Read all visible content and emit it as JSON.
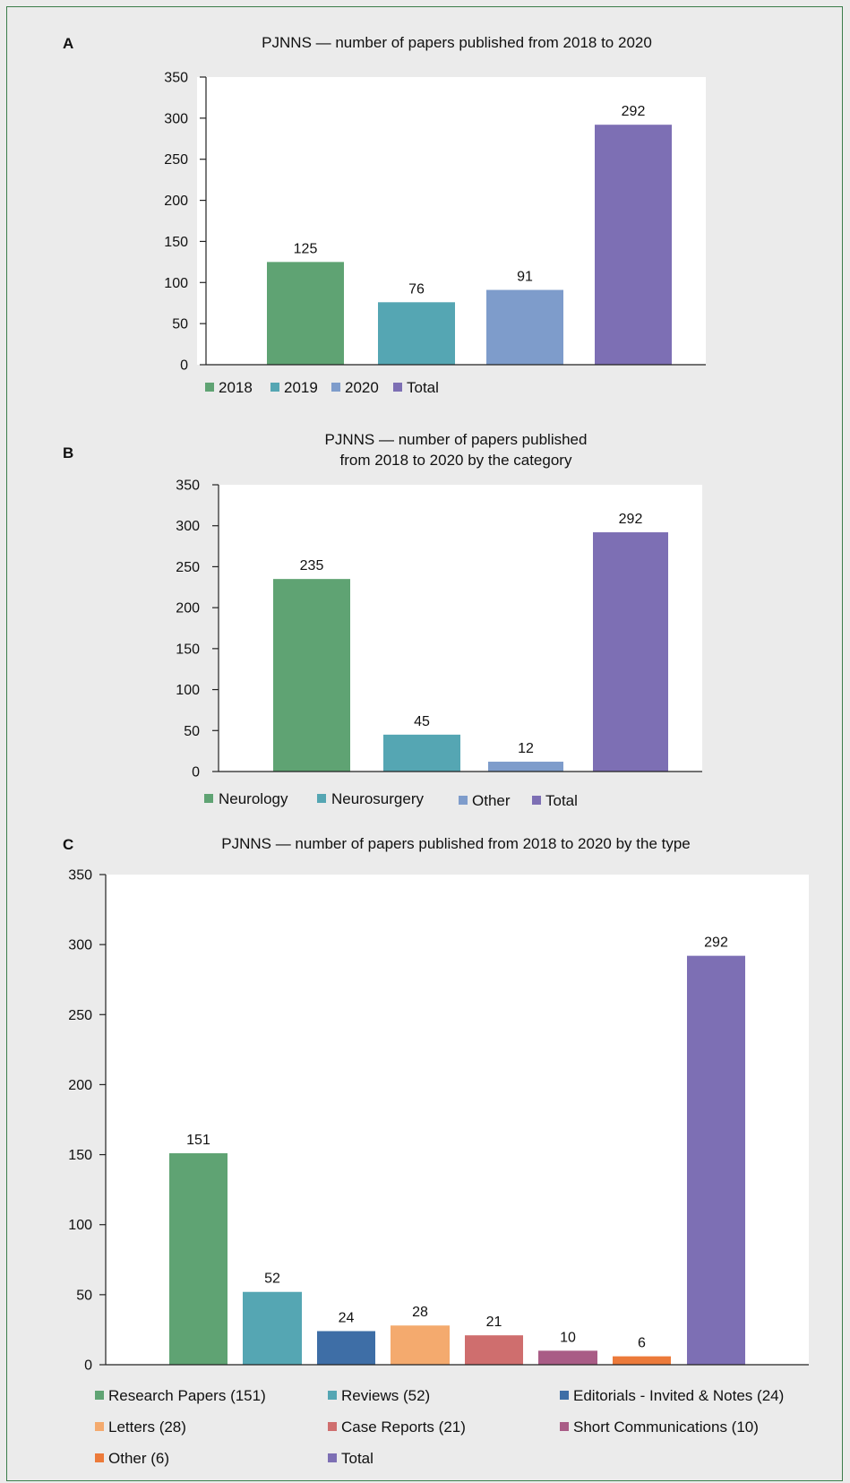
{
  "chart_data": [
    {
      "panel": "A",
      "type": "bar",
      "title": "PJNNS — number of papers published from 2018 to 2020",
      "categories": [
        "2018",
        "2019",
        "2020",
        "Total"
      ],
      "values": [
        125,
        76,
        91,
        292
      ],
      "legend": [
        "2018",
        "2019",
        "2020",
        "Total"
      ],
      "colors": [
        "#5fa373",
        "#55a6b3",
        "#7e9ccb",
        "#7d6fb4"
      ],
      "ylim": [
        0,
        350
      ],
      "yticks": [
        0,
        50,
        100,
        150,
        200,
        250,
        300,
        350
      ],
      "grid": false,
      "legend_position": "bottom"
    },
    {
      "panel": "B",
      "type": "bar",
      "title": "PJNNS — number of papers published\nfrom 2018 to 2020 by the category",
      "categories": [
        "Neurology",
        "Neurosurgery",
        "Other",
        "Total"
      ],
      "values": [
        235,
        45,
        12,
        292
      ],
      "legend": [
        "Neurology",
        "Neurosurgery",
        "Other",
        "Total"
      ],
      "colors": [
        "#5fa373",
        "#55a6b3",
        "#7e9ccb",
        "#7d6fb4"
      ],
      "ylim": [
        0,
        350
      ],
      "yticks": [
        0,
        50,
        100,
        150,
        200,
        250,
        300,
        350
      ],
      "grid": false,
      "legend_position": "bottom"
    },
    {
      "panel": "C",
      "type": "bar",
      "title": "PJNNS — number of papers published from 2018 to 2020 by the type",
      "categories": [
        "Research Papers",
        "Reviews",
        "Editorials - Invited & Notes",
        "Letters",
        "Case Reports",
        "Short Communications",
        "Other",
        "Total"
      ],
      "values": [
        151,
        52,
        24,
        28,
        21,
        10,
        6,
        292
      ],
      "legend": [
        "Research Papers (151)",
        "Reviews (52)",
        "Editorials - Invited & Notes (24)",
        "Letters (28)",
        "Case Reports (21)",
        "Short Communications (10)",
        "Other (6)",
        "Total"
      ],
      "colors": [
        "#5fa373",
        "#55a6b3",
        "#3e6ea6",
        "#f4aa6e",
        "#cf6e6e",
        "#a95c86",
        "#ec7a3a",
        "#7d6fb4"
      ],
      "ylim": [
        0,
        350
      ],
      "yticks": [
        0,
        50,
        100,
        150,
        200,
        250,
        300,
        350
      ],
      "grid": false,
      "legend_position": "bottom"
    }
  ]
}
